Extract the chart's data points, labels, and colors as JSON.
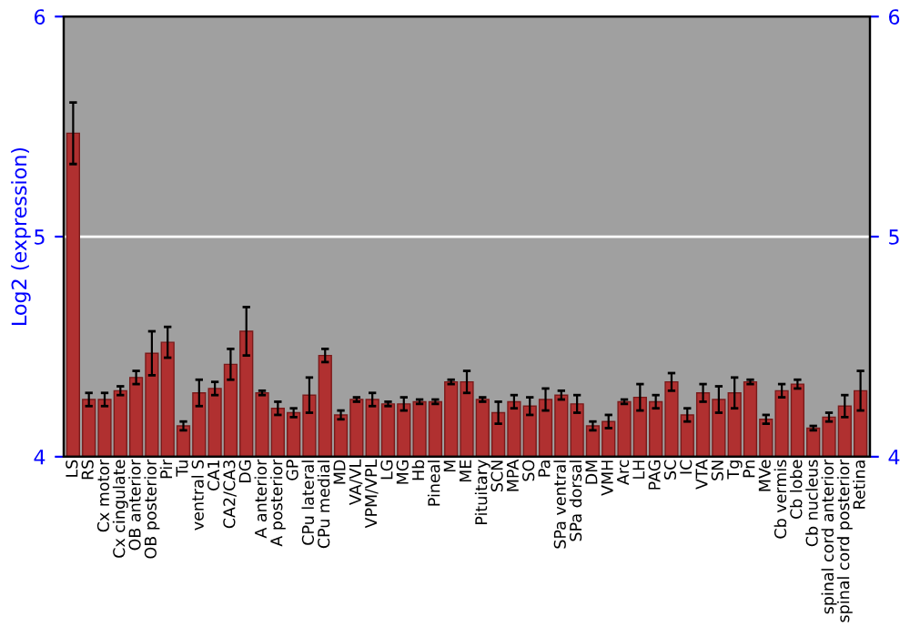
{
  "chart_data": {
    "type": "bar",
    "ylabel": "Log2 (expression)",
    "categories": [
      "LS",
      "RS",
      "Cx motor",
      "Cx cingulate",
      "OB anterior",
      "OB posterior",
      "Pir",
      "Tu",
      "ventral S",
      "CA1",
      "CA2/CA3",
      "DG",
      "A anterior",
      "A posterior",
      "GP",
      "CPu lateral",
      "CPu medial",
      "MD",
      "VA/VL",
      "VPM/VPL",
      "LG",
      "MG",
      "Hb",
      "Pineal",
      "M",
      "ME",
      "Pituitary",
      "SCN",
      "MPA",
      "SO",
      "Pa",
      "SPa ventral",
      "SPa dorsal",
      "DM",
      "VMH",
      "Arc",
      "LH",
      "PAG",
      "SC",
      "IC",
      "VTA",
      "SN",
      "Tg",
      "Pn",
      "MVe",
      "Cb vermis",
      "Cb lobe",
      "Cb nucleus",
      "spinal cord anterior",
      "spinal cord posterior",
      "Retina"
    ],
    "values": [
      5.47,
      4.26,
      4.26,
      4.3,
      4.36,
      4.47,
      4.52,
      4.14,
      4.29,
      4.31,
      4.42,
      4.57,
      4.29,
      4.22,
      4.2,
      4.28,
      4.46,
      4.19,
      4.26,
      4.26,
      4.24,
      4.24,
      4.25,
      4.25,
      4.34,
      4.34,
      4.26,
      4.2,
      4.25,
      4.23,
      4.26,
      4.28,
      4.24,
      4.14,
      4.16,
      4.25,
      4.27,
      4.25,
      4.34,
      4.19,
      4.29,
      4.26,
      4.29,
      4.34,
      4.17,
      4.3,
      4.33,
      4.13,
      4.18,
      4.23,
      4.3
    ],
    "errors": [
      0.14,
      0.03,
      0.03,
      0.02,
      0.03,
      0.1,
      0.07,
      0.02,
      0.06,
      0.03,
      0.07,
      0.11,
      0.01,
      0.03,
      0.02,
      0.08,
      0.03,
      0.02,
      0.01,
      0.03,
      0.01,
      0.03,
      0.01,
      0.01,
      0.01,
      0.05,
      0.01,
      0.05,
      0.03,
      0.04,
      0.05,
      0.02,
      0.04,
      0.02,
      0.03,
      0.01,
      0.06,
      0.03,
      0.04,
      0.03,
      0.04,
      0.06,
      0.07,
      0.01,
      0.02,
      0.03,
      0.02,
      0.01,
      0.02,
      0.05,
      0.09
    ],
    "color": "#b03030",
    "ylim": [
      4,
      6
    ],
    "yticks": [
      4,
      5,
      6
    ],
    "y2lim": [
      4,
      6
    ],
    "y2ticks": [
      4,
      5,
      6
    ],
    "ref_lines": [
      {
        "axis": "y",
        "value": 5,
        "color": "#ffffff"
      }
    ]
  }
}
